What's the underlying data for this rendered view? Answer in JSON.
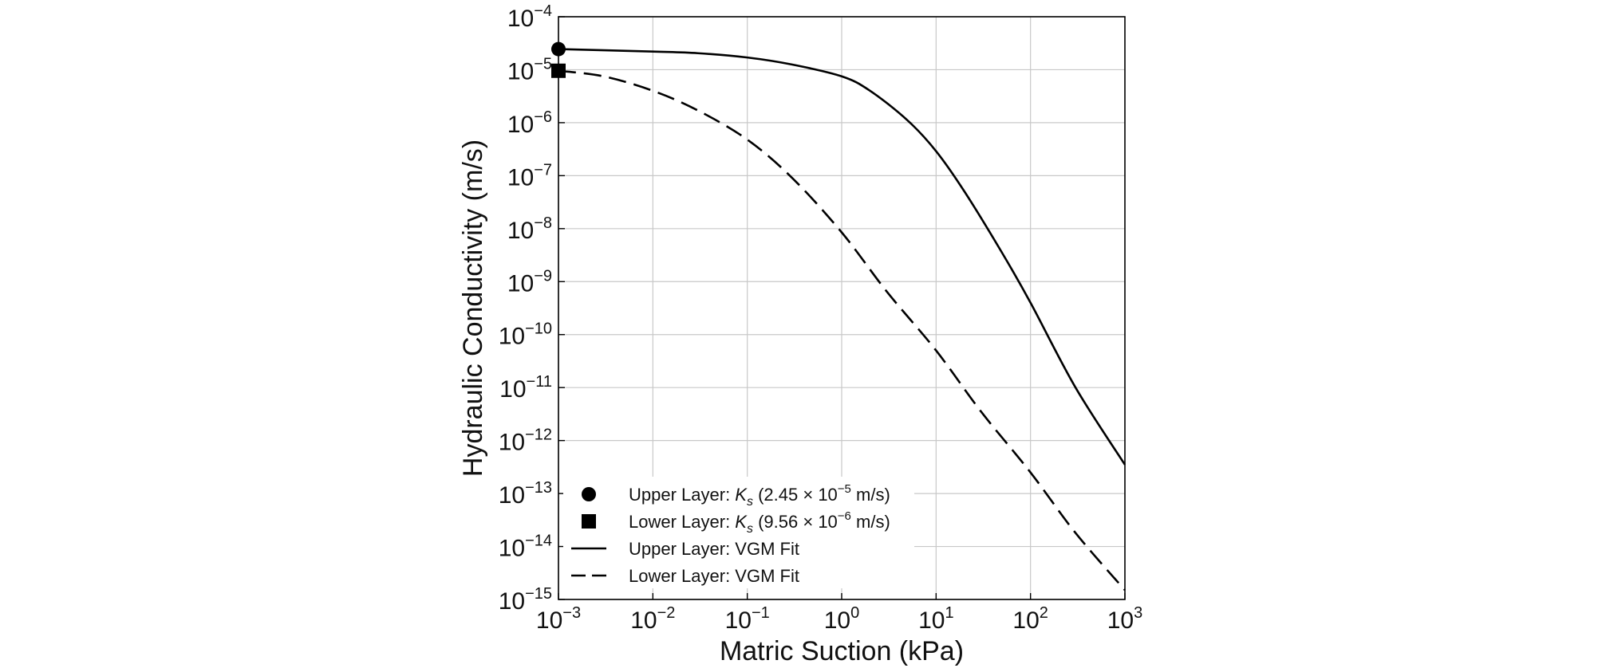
{
  "chart_data": {
    "type": "line",
    "x_scale": "log",
    "y_scale": "log",
    "xlabel": "Matric Suction (kPa)",
    "ylabel": "Hydraulic Conductivity (m/s)",
    "xlim": [
      0.001,
      1000
    ],
    "ylim": [
      1e-15,
      0.0001
    ],
    "grid": true,
    "x_ticks": [
      {
        "base": "10",
        "exp": "−3",
        "value": 0.001
      },
      {
        "base": "10",
        "exp": "−2",
        "value": 0.01
      },
      {
        "base": "10",
        "exp": "−1",
        "value": 0.1
      },
      {
        "base": "10",
        "exp": "0",
        "value": 1
      },
      {
        "base": "10",
        "exp": "1",
        "value": 10
      },
      {
        "base": "10",
        "exp": "2",
        "value": 100
      },
      {
        "base": "10",
        "exp": "3",
        "value": 1000
      }
    ],
    "y_ticks": [
      {
        "base": "10",
        "exp": "−4",
        "value": 0.0001
      },
      {
        "base": "10",
        "exp": "−5",
        "value": 1e-05
      },
      {
        "base": "10",
        "exp": "−6",
        "value": 1e-06
      },
      {
        "base": "10",
        "exp": "−7",
        "value": 1e-07
      },
      {
        "base": "10",
        "exp": "−8",
        "value": 1e-08
      },
      {
        "base": "10",
        "exp": "−9",
        "value": 1e-09
      },
      {
        "base": "10",
        "exp": "−10",
        "value": 1e-10
      },
      {
        "base": "10",
        "exp": "−11",
        "value": 1e-11
      },
      {
        "base": "10",
        "exp": "−12",
        "value": 1e-12
      },
      {
        "base": "10",
        "exp": "−13",
        "value": 1e-13
      },
      {
        "base": "10",
        "exp": "−14",
        "value": 1e-14
      },
      {
        "base": "10",
        "exp": "−15",
        "value": 1e-15
      }
    ],
    "points": [
      {
        "name": "Upper Layer: Ks",
        "marker": "circle",
        "x": 0.001,
        "y": 2.45e-05
      },
      {
        "name": "Lower Layer: Ks",
        "marker": "square",
        "x": 0.001,
        "y": 9.56e-06
      }
    ],
    "series": [
      {
        "name": "Upper Layer: VGM Fit",
        "style": "solid",
        "x": [
          0.001,
          0.01,
          0.03,
          0.1,
          0.3,
          1,
          2,
          5,
          10,
          20,
          50,
          100,
          300,
          1000
        ],
        "y": [
          2.45e-05,
          2.2e-05,
          2.05e-05,
          1.7e-05,
          1.25e-05,
          7.5e-06,
          4e-06,
          1.1e-06,
          2.9e-07,
          5e-08,
          3.5e-09,
          4e-10,
          1e-11,
          3.5e-13
        ]
      },
      {
        "name": "Lower Layer: VGM Fit",
        "style": "dashed",
        "x": [
          0.001,
          0.003,
          0.01,
          0.03,
          0.1,
          0.3,
          1,
          3,
          10,
          30,
          100,
          300,
          1000
        ],
        "y": [
          9.56e-06,
          7.5e-06,
          4e-06,
          1.7e-06,
          4.8e-07,
          9e-08,
          8.5e-09,
          6.5e-10,
          5e-11,
          3.5e-12,
          2.5e-13,
          1.8e-14,
          1.5e-15
        ]
      }
    ],
    "legend": {
      "position": "lower-left",
      "entries": [
        {
          "marker": "circle",
          "prefix": "Upper Layer: ",
          "symbol": "K",
          "sub": "s",
          "mid": " (2.45 × 10",
          "exp": "−5",
          "suffix": " m/s)"
        },
        {
          "marker": "square",
          "prefix": "Lower Layer: ",
          "symbol": "K",
          "sub": "s",
          "mid": " (9.56 × 10",
          "exp": "−6",
          "suffix": " m/s)"
        },
        {
          "marker": "solid-line",
          "text": "Upper Layer: VGM Fit"
        },
        {
          "marker": "dashed-line",
          "text": "Lower Layer: VGM Fit"
        }
      ]
    }
  }
}
